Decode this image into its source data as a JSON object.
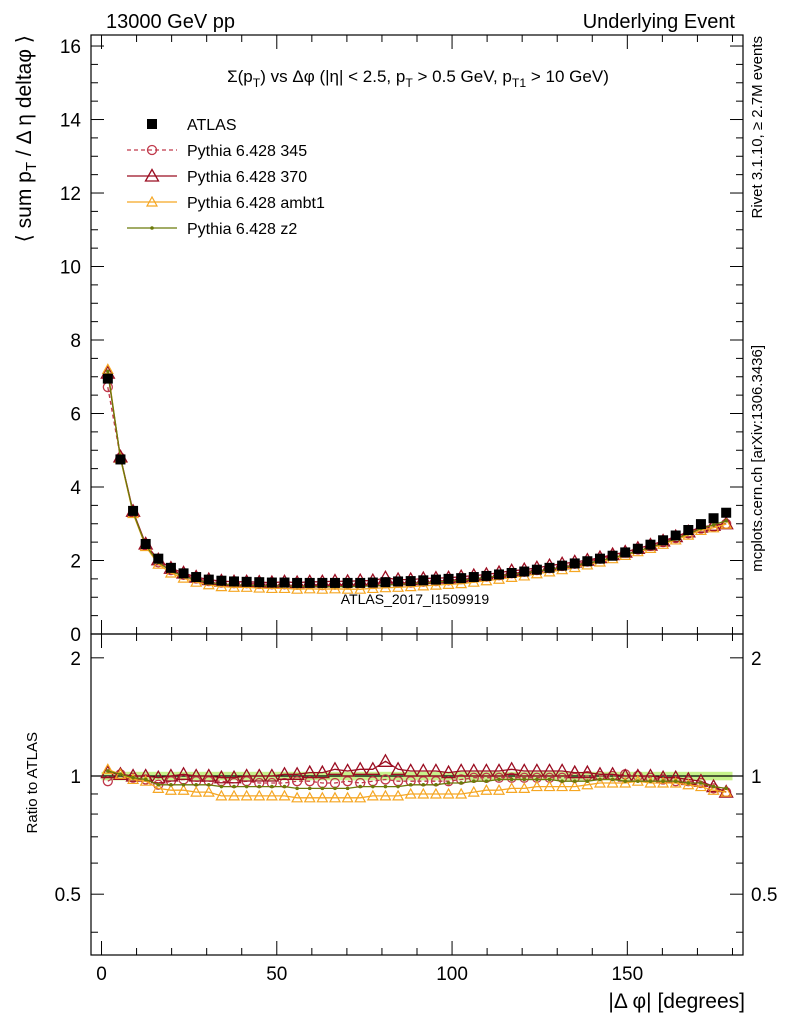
{
  "header": {
    "left": "13000 GeV pp",
    "right": "Underlying Event"
  },
  "side_labels": {
    "top": "Rivet 3.1.10, ≥ 2.7M events",
    "bottom": "mcplots.cern.ch [arXiv:1306.3436]"
  },
  "chart_data": {
    "type": "line",
    "title": "Σ(p_T) vs Δφ (|η| < 2.5, p_T > 0.5 GeV, p_T1 > 10 GeV)",
    "watermark": "ATLAS_2017_I1509919",
    "xlabel": "|Δ φ| [degrees]",
    "ylabel": "⟨ sum p_T / Δ η deltaφ ⟩",
    "ratio_ylabel": "Ratio to ATLAS",
    "xlim": [
      -3,
      183
    ],
    "ylim": [
      0,
      16.3
    ],
    "ratio_ylim": [
      0.35,
      2.3
    ],
    "ratio_log": true,
    "x_ticks": [
      0,
      50,
      100,
      150
    ],
    "y_ticks": [
      0,
      2,
      4,
      6,
      8,
      10,
      12,
      14,
      16
    ],
    "ratio_ticks": [
      0.5,
      1,
      2
    ],
    "legend_position": "top-left",
    "x": [
      1.8,
      5.4,
      9.0,
      12.6,
      16.2,
      19.8,
      23.4,
      27.0,
      30.6,
      34.2,
      37.8,
      41.4,
      45.0,
      48.6,
      52.2,
      55.8,
      59.4,
      63.0,
      66.6,
      70.2,
      73.8,
      77.4,
      81.0,
      84.6,
      88.2,
      91.8,
      95.4,
      99.0,
      102.6,
      106.2,
      109.8,
      113.4,
      117.0,
      120.6,
      124.2,
      127.8,
      131.4,
      135.0,
      138.6,
      142.2,
      145.8,
      149.4,
      153.0,
      156.6,
      160.2,
      163.8,
      167.4,
      171.0,
      174.6,
      178.2
    ],
    "series": [
      {
        "name": "ATLAS",
        "color": "#000000",
        "marker": "square",
        "values": [
          6.95,
          4.75,
          3.35,
          2.45,
          2.05,
          1.8,
          1.65,
          1.55,
          1.48,
          1.45,
          1.43,
          1.42,
          1.41,
          1.4,
          1.4,
          1.39,
          1.39,
          1.39,
          1.39,
          1.39,
          1.39,
          1.4,
          1.41,
          1.43,
          1.44,
          1.46,
          1.48,
          1.5,
          1.52,
          1.55,
          1.58,
          1.62,
          1.66,
          1.7,
          1.75,
          1.8,
          1.86,
          1.92,
          1.98,
          2.05,
          2.13,
          2.22,
          2.32,
          2.43,
          2.55,
          2.68,
          2.83,
          2.99,
          3.15,
          3.3
        ],
        "ratio": [
          1.0,
          1.0,
          1.0,
          1.0,
          1.0,
          1.0,
          1.0,
          1.0,
          1.0,
          1.0,
          1.0,
          1.0,
          1.0,
          1.0,
          1.0,
          1.0,
          1.0,
          1.0,
          1.0,
          1.0,
          1.0,
          1.0,
          1.0,
          1.0,
          1.0,
          1.0,
          1.0,
          1.0,
          1.0,
          1.0,
          1.0,
          1.0,
          1.0,
          1.0,
          1.0,
          1.0,
          1.0,
          1.0,
          1.0,
          1.0,
          1.0,
          1.0,
          1.0,
          1.0,
          1.0,
          1.0,
          1.0,
          1.0,
          1.0,
          1.0
        ]
      },
      {
        "name": "Pythia 6.428 345",
        "color": "#c0394b",
        "marker": "circle",
        "dashed": true,
        "values": [
          6.72,
          4.8,
          3.3,
          2.41,
          1.95,
          1.74,
          1.61,
          1.51,
          1.44,
          1.4,
          1.38,
          1.38,
          1.36,
          1.35,
          1.35,
          1.34,
          1.35,
          1.33,
          1.34,
          1.35,
          1.34,
          1.36,
          1.38,
          1.39,
          1.4,
          1.42,
          1.44,
          1.46,
          1.49,
          1.53,
          1.56,
          1.6,
          1.65,
          1.69,
          1.74,
          1.79,
          1.85,
          1.91,
          1.97,
          2.05,
          2.14,
          2.22,
          2.3,
          2.4,
          2.5,
          2.61,
          2.74,
          2.87,
          2.92,
          3.0
        ],
        "ratio": [
          0.97,
          1.01,
          0.99,
          0.98,
          0.95,
          0.97,
          0.98,
          0.97,
          0.97,
          0.97,
          0.96,
          0.97,
          0.96,
          0.96,
          0.96,
          0.97,
          0.97,
          0.96,
          0.96,
          0.97,
          0.96,
          0.97,
          0.98,
          0.97,
          0.97,
          0.97,
          0.97,
          0.97,
          0.98,
          0.99,
          0.99,
          0.99,
          0.99,
          0.99,
          0.99,
          0.99,
          0.99,
          0.99,
          1.0,
          1.0,
          1.0,
          1.01,
          1.0,
          0.99,
          0.98,
          0.97,
          0.97,
          0.96,
          0.93,
          0.91
        ]
      },
      {
        "name": "Pythia 6.428 370",
        "color": "#9b0d21",
        "marker": "triangle",
        "values": [
          7.1,
          4.82,
          3.34,
          2.45,
          2.02,
          1.79,
          1.66,
          1.55,
          1.48,
          1.44,
          1.42,
          1.42,
          1.41,
          1.4,
          1.42,
          1.4,
          1.42,
          1.42,
          1.44,
          1.43,
          1.45,
          1.45,
          1.53,
          1.48,
          1.48,
          1.51,
          1.52,
          1.53,
          1.56,
          1.59,
          1.62,
          1.67,
          1.72,
          1.75,
          1.8,
          1.86,
          1.91,
          1.96,
          2.01,
          2.08,
          2.16,
          2.23,
          2.33,
          2.42,
          2.53,
          2.65,
          2.78,
          2.91,
          2.96,
          3.0
        ],
        "ratio": [
          1.02,
          1.01,
          1.0,
          1.0,
          0.99,
          1.0,
          1.01,
          1.0,
          1.0,
          0.99,
          0.99,
          1.0,
          1.0,
          1.0,
          1.01,
          1.01,
          1.02,
          1.02,
          1.04,
          1.03,
          1.04,
          1.04,
          1.09,
          1.04,
          1.03,
          1.03,
          1.03,
          1.02,
          1.03,
          1.03,
          1.03,
          1.03,
          1.04,
          1.03,
          1.03,
          1.03,
          1.03,
          1.02,
          1.02,
          1.01,
          1.01,
          1.0,
          1.0,
          1.0,
          0.99,
          0.99,
          0.98,
          0.97,
          0.94,
          0.91
        ]
      },
      {
        "name": "Pythia 6.428 ambt1",
        "color": "#f5a623",
        "marker": "triangle-small",
        "values": [
          7.2,
          4.78,
          3.28,
          2.38,
          1.9,
          1.66,
          1.52,
          1.41,
          1.34,
          1.29,
          1.27,
          1.27,
          1.25,
          1.24,
          1.24,
          1.22,
          1.23,
          1.22,
          1.23,
          1.22,
          1.22,
          1.24,
          1.26,
          1.27,
          1.29,
          1.31,
          1.33,
          1.35,
          1.37,
          1.41,
          1.45,
          1.49,
          1.54,
          1.58,
          1.64,
          1.69,
          1.75,
          1.81,
          1.88,
          1.96,
          2.05,
          2.14,
          2.24,
          2.33,
          2.44,
          2.56,
          2.69,
          2.82,
          2.89,
          2.99
        ],
        "ratio": [
          1.04,
          1.01,
          0.98,
          0.97,
          0.93,
          0.92,
          0.92,
          0.91,
          0.91,
          0.89,
          0.89,
          0.89,
          0.89,
          0.89,
          0.89,
          0.88,
          0.88,
          0.88,
          0.88,
          0.88,
          0.88,
          0.89,
          0.89,
          0.89,
          0.9,
          0.9,
          0.9,
          0.9,
          0.9,
          0.91,
          0.92,
          0.92,
          0.93,
          0.93,
          0.94,
          0.94,
          0.94,
          0.94,
          0.95,
          0.96,
          0.96,
          0.96,
          0.97,
          0.96,
          0.96,
          0.96,
          0.95,
          0.94,
          0.92,
          0.91
        ]
      },
      {
        "name": "Pythia 6.428 z2",
        "color": "#6b7a0a",
        "marker": "dot",
        "values": [
          7.15,
          4.8,
          3.31,
          2.41,
          1.95,
          1.71,
          1.57,
          1.47,
          1.4,
          1.36,
          1.34,
          1.33,
          1.32,
          1.31,
          1.31,
          1.29,
          1.3,
          1.29,
          1.29,
          1.29,
          1.3,
          1.31,
          1.33,
          1.35,
          1.37,
          1.39,
          1.41,
          1.44,
          1.46,
          1.5,
          1.54,
          1.58,
          1.62,
          1.66,
          1.71,
          1.76,
          1.81,
          1.87,
          1.93,
          2.0,
          2.08,
          2.16,
          2.26,
          2.36,
          2.47,
          2.59,
          2.73,
          2.87,
          2.97,
          3.08
        ],
        "ratio": [
          1.03,
          1.01,
          0.99,
          0.98,
          0.95,
          0.95,
          0.95,
          0.95,
          0.95,
          0.94,
          0.94,
          0.94,
          0.94,
          0.94,
          0.94,
          0.93,
          0.93,
          0.93,
          0.93,
          0.93,
          0.94,
          0.94,
          0.94,
          0.94,
          0.95,
          0.95,
          0.95,
          0.96,
          0.96,
          0.97,
          0.97,
          0.98,
          0.98,
          0.98,
          0.98,
          0.98,
          0.97,
          0.97,
          0.97,
          0.98,
          0.98,
          0.97,
          0.97,
          0.97,
          0.97,
          0.97,
          0.96,
          0.96,
          0.94,
          0.93
        ]
      }
    ]
  }
}
